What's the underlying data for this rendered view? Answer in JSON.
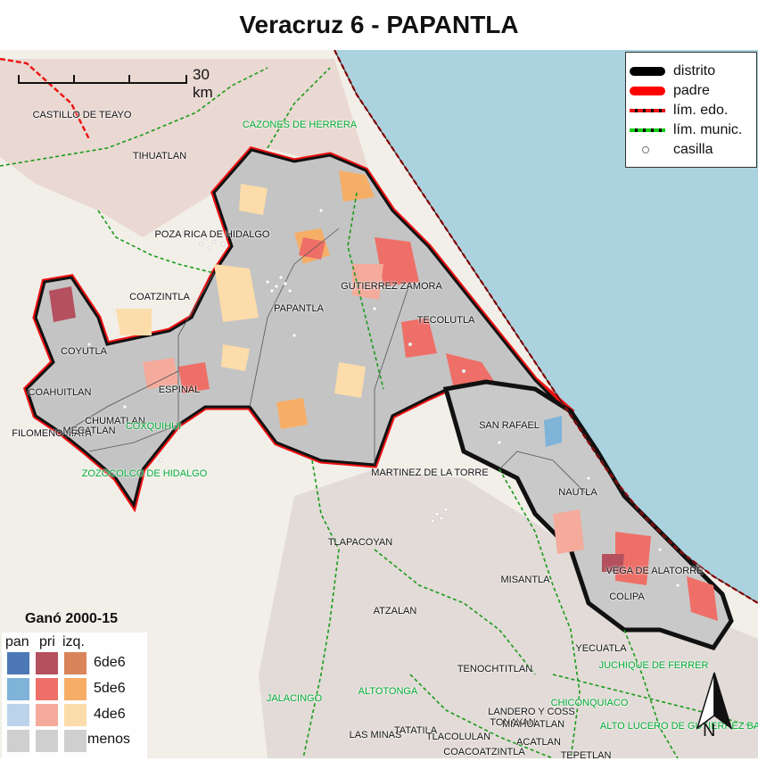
{
  "title": "Veracruz 6 - PAPANTLA",
  "scale": {
    "label": "30 km"
  },
  "legend": [
    {
      "label": "distrito",
      "icon": "thick-black-line"
    },
    {
      "label": "padre",
      "icon": "thick-red-line"
    },
    {
      "label": "lím. edo.",
      "icon": "red-black-dashed-line"
    },
    {
      "label": "lím. munic.",
      "icon": "green-black-dashed-line"
    },
    {
      "label": "casilla",
      "icon": "hollow-circle"
    }
  ],
  "color_legend": {
    "title": "Ganó 2000-15",
    "columns": [
      "pan",
      "pri",
      "izq."
    ],
    "rows": [
      {
        "label": "6de6",
        "colors": [
          "#4c78b5",
          "#b5505e",
          "#d9845a"
        ]
      },
      {
        "label": "5de6",
        "colors": [
          "#7fb3d8",
          "#ee6f68",
          "#f6ae66"
        ]
      },
      {
        "label": "4de6",
        "colors": [
          "#bcd4ea",
          "#f4ab9c",
          "#fbdcaa"
        ]
      },
      {
        "label": "menos",
        "colors": [
          "#cfcfcf",
          "#cfcfcf",
          "#cfcfcf"
        ]
      }
    ]
  },
  "places": [
    {
      "name": "CASTILLO DE TEAYO",
      "style": "dark"
    },
    {
      "name": "CAZONES DE HERRERA",
      "style": "green"
    },
    {
      "name": "TIHUATLAN",
      "style": "dark"
    },
    {
      "name": "POZA RICA DE HIDALGO",
      "style": "dark"
    },
    {
      "name": "COATZINTLA",
      "style": "dark"
    },
    {
      "name": "GUTIERREZ ZAMORA",
      "style": "dark"
    },
    {
      "name": "PAPANTLA",
      "style": "dark"
    },
    {
      "name": "TECOLUTLA",
      "style": "dark"
    },
    {
      "name": "COYUTLA",
      "style": "dark"
    },
    {
      "name": "COAHUITLAN",
      "style": "dark"
    },
    {
      "name": "ESPINAL",
      "style": "dark"
    },
    {
      "name": "CHUMATLAN",
      "style": "dark"
    },
    {
      "name": "FILOMENO MATA",
      "style": "dark"
    },
    {
      "name": "MECATLAN",
      "style": "dark"
    },
    {
      "name": "COXQUIHUI",
      "style": "green"
    },
    {
      "name": "ZOZOCOLCO DE HIDALGO",
      "style": "green"
    },
    {
      "name": "SAN RAFAEL",
      "style": "dark"
    },
    {
      "name": "MARTINEZ DE LA TORRE",
      "style": "dark"
    },
    {
      "name": "NAUTLA",
      "style": "dark"
    },
    {
      "name": "TLAPACOYAN",
      "style": "dark"
    },
    {
      "name": "MISANTLA",
      "style": "dark"
    },
    {
      "name": "VEGA DE ALATORRE",
      "style": "dark"
    },
    {
      "name": "COLIPA",
      "style": "dark"
    },
    {
      "name": "ATZALAN",
      "style": "dark"
    },
    {
      "name": "YECUATLA",
      "style": "dark"
    },
    {
      "name": "JUCHIQUE DE FERRER",
      "style": "green"
    },
    {
      "name": "TENOCHTITLAN",
      "style": "dark"
    },
    {
      "name": "JALACINGO",
      "style": "green"
    },
    {
      "name": "ALTOTONGA",
      "style": "green"
    },
    {
      "name": "CHICONQUIACO",
      "style": "green"
    },
    {
      "name": "LANDERO Y COSS",
      "style": "dark"
    },
    {
      "name": "ALTO LUCERO DE GUTIERREZ BARRIOS",
      "style": "green"
    },
    {
      "name": "TONAYAN",
      "style": "dark"
    },
    {
      "name": "MIAHUATLAN",
      "style": "dark"
    },
    {
      "name": "LAS MINAS",
      "style": "dark"
    },
    {
      "name": "TATATILA",
      "style": "dark"
    },
    {
      "name": "TLACOLULAN",
      "style": "dark"
    },
    {
      "name": "ACATLAN",
      "style": "dark"
    },
    {
      "name": "COACOATZINTLA",
      "style": "dark"
    },
    {
      "name": "TEPETLAN",
      "style": "dark"
    }
  ],
  "north_label": "N",
  "colors": {
    "sea": "#aad3df",
    "land": "#f2efe9",
    "district_fill": "#c9c9c9"
  }
}
